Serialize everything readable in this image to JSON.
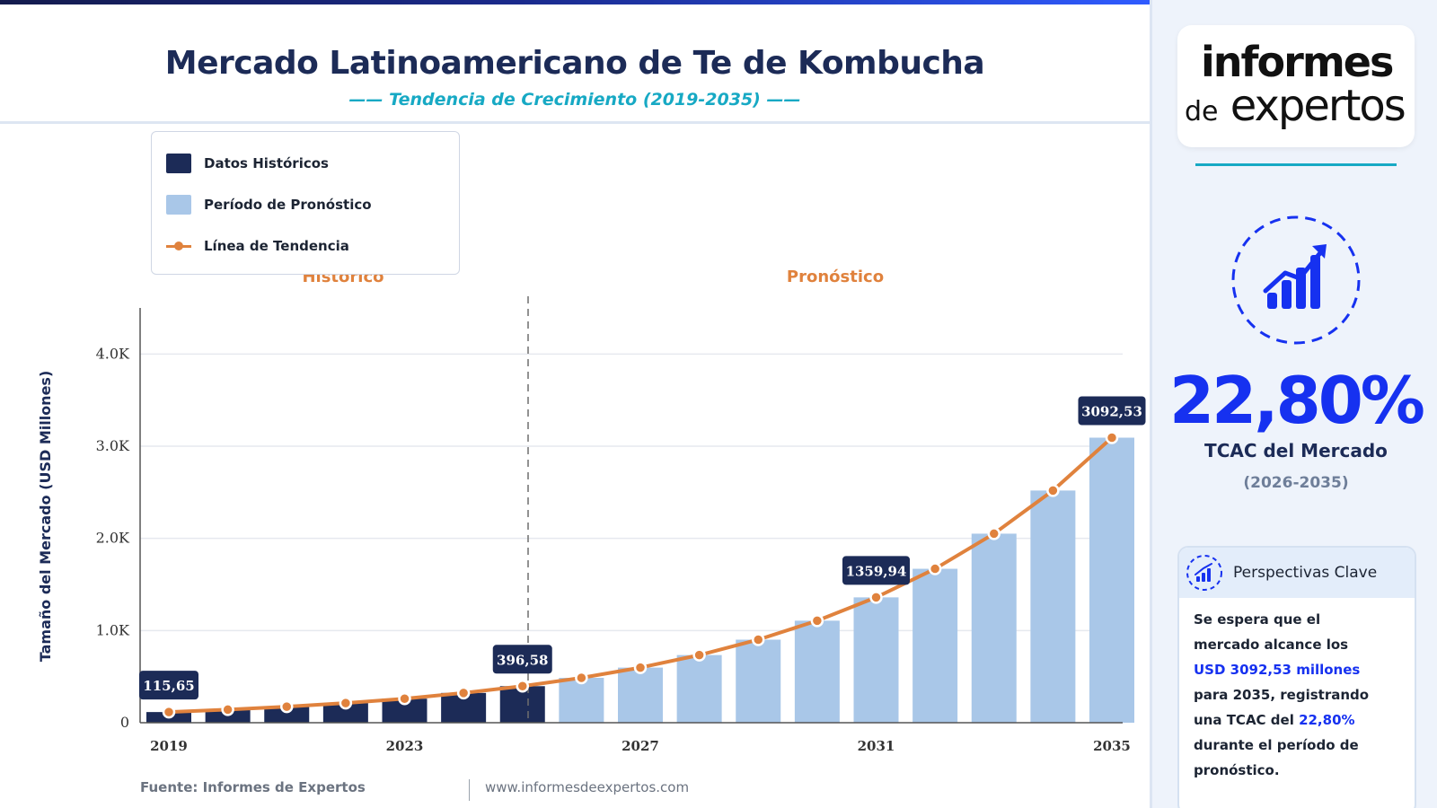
{
  "header": {
    "title": "Mercado Latinoamericano de Te de Kombucha",
    "subtitle": "—— Tendencia de Crecimiento (2019-2035) ——"
  },
  "legend": {
    "historical": "Datos Históricos",
    "forecast": "Período de Pronóstico",
    "trend": "Línea de Tendencia"
  },
  "regions": {
    "historical": "Histórico",
    "forecast": "Pronóstico"
  },
  "chart_data": {
    "type": "bar",
    "ylabel": "Tamaño del Mercado (USD Millones)",
    "xlabel": "",
    "ylim": [
      0,
      4500
    ],
    "yticks": [
      0,
      1000,
      2000,
      3000,
      4000
    ],
    "ytick_labels": [
      "0",
      "1.0K",
      "2.0K",
      "3.0K",
      "4.0K"
    ],
    "xtick_labels": [
      "2019",
      "2023",
      "2027",
      "2031",
      "2035"
    ],
    "categories": [
      "2019",
      "2020",
      "2021",
      "2022",
      "2023",
      "2024",
      "2025",
      "2026",
      "2027",
      "2028",
      "2029",
      "2030",
      "2031",
      "2032",
      "2033",
      "2034",
      "2035"
    ],
    "values": [
      115.65,
      142,
      174,
      213,
      261,
      323,
      396.58,
      487,
      598,
      734,
      901,
      1107,
      1359.94,
      1670,
      2051,
      2519,
      3092.53
    ],
    "historical_count": 7,
    "data_labels": [
      {
        "index": 0,
        "text": "115,65"
      },
      {
        "index": 6,
        "text": "396,58"
      },
      {
        "index": 12,
        "text": "1359,94"
      },
      {
        "index": 16,
        "text": "3092,53"
      }
    ],
    "grid": true,
    "colors": {
      "historical": "#1c2b57",
      "forecast": "#a9c7e8",
      "trend": "#e0823d"
    }
  },
  "footer": {
    "source": "Fuente: Informes de Expertos",
    "website": "www.informesdeexpertos.com"
  },
  "sidebar": {
    "logo_line1": "informes",
    "logo_de": "de",
    "logo_line2": "expertos",
    "cagr_value": "22,80%",
    "cagr_label": "TCAC del Mercado",
    "cagr_period": "(2026-2035)",
    "insight_title": "Perspectivas Clave",
    "insight_1": "Se espera que el mercado alcance los ",
    "insight_2": "USD 3092,53 millones",
    "insight_3": " para 2035, registrando una TCAC del ",
    "insight_4": "22,80%",
    "insight_5": " durante el período de pronóstico.",
    "accent_color": "#1631f0"
  }
}
